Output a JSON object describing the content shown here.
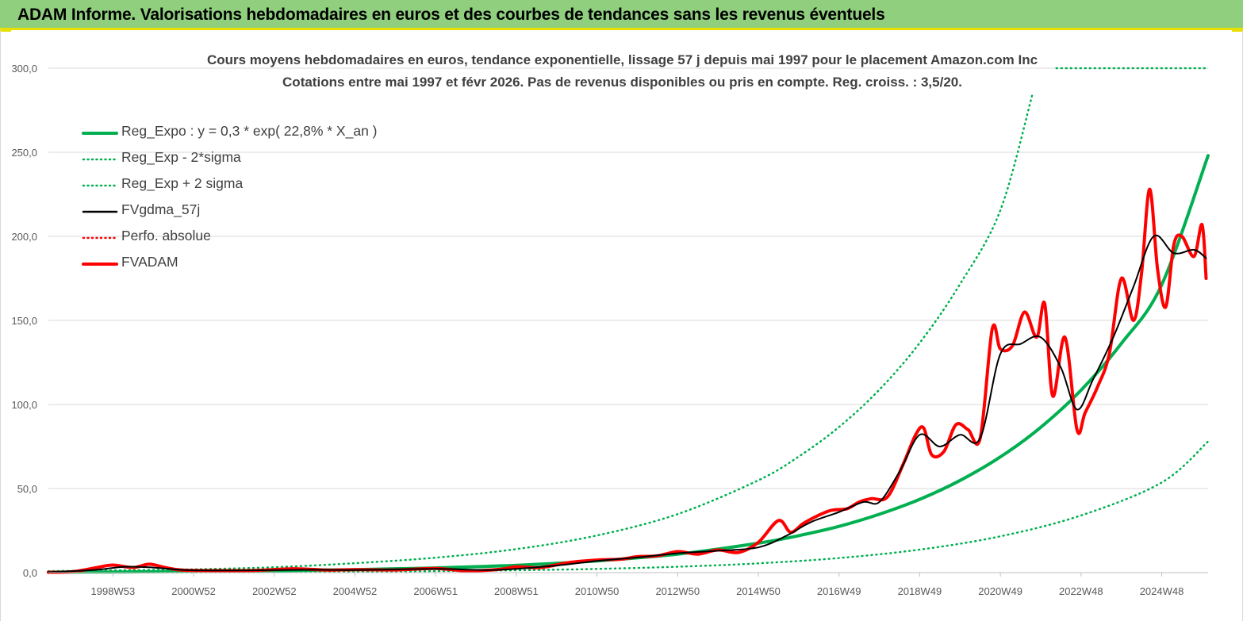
{
  "header": {
    "title": "ADAM Informe. Valorisations hebdomadaires en euros et des courbes de tendances sans les revenus éventuels"
  },
  "chart_data": {
    "type": "line",
    "title": "Cours moyens hebdomadaires en euros, tendance exponentielle, lissage 57 j depuis mai 1997 pour le placement Amazon.com Inc",
    "subtitle": "Cotations entre mai 1997 et févr 2026. Pas de revenus disponibles ou pris en compte. Reg. croiss. : 3,5/20.",
    "xlabel": "",
    "ylabel": "",
    "x_range": [
      1997.4,
      2026.15
    ],
    "ylim": [
      0,
      300
    ],
    "y_ticks": [
      "0,0",
      "50,0",
      "100,0",
      "150,0",
      "200,0",
      "250,0",
      "300,0"
    ],
    "x_ticks": [
      {
        "label": "1998W53",
        "x": 1999.0
      },
      {
        "label": "2000W52",
        "x": 2001.0
      },
      {
        "label": "2002W52",
        "x": 2003.0
      },
      {
        "label": "2004W52",
        "x": 2005.0
      },
      {
        "label": "2006W51",
        "x": 2007.0
      },
      {
        "label": "2008W51",
        "x": 2009.0
      },
      {
        "label": "2010W50",
        "x": 2011.0
      },
      {
        "label": "2012W50",
        "x": 2013.0
      },
      {
        "label": "2014W50",
        "x": 2015.0
      },
      {
        "label": "2016W49",
        "x": 2017.0
      },
      {
        "label": "2018W49",
        "x": 2019.0
      },
      {
        "label": "2020W49",
        "x": 2021.0
      },
      {
        "label": "2022W48",
        "x": 2023.0
      },
      {
        "label": "2024W48",
        "x": 2025.0
      }
    ],
    "grid": true,
    "legend_position": "top-left",
    "series": [
      {
        "name": "Reg_Expo : y = 0,3 * exp( 22,8% *  X_an )",
        "color": "#00b050",
        "style": "solid-thick",
        "x": [
          1997.4,
          1999,
          2001,
          2003,
          2005,
          2007,
          2009,
          2011,
          2013,
          2015,
          2016,
          2017,
          2018,
          2019,
          2020,
          2021,
          2022,
          2023,
          2024,
          2025,
          2026.15
        ],
        "y": [
          0.3,
          0.4,
          0.7,
          1.1,
          1.8,
          2.8,
          4.4,
          7.0,
          11.0,
          17.5,
          22.0,
          27.5,
          34.7,
          43.6,
          54.8,
          68.8,
          86.4,
          108.5,
          136.3,
          171.2,
          248.0
        ]
      },
      {
        "name": "Reg_Exp - 2*sigma",
        "color": "#00b050",
        "style": "dotted",
        "x": [
          1997.4,
          1999,
          2001,
          2003,
          2005,
          2007,
          2009,
          2011,
          2013,
          2015,
          2017,
          2019,
          2021,
          2023,
          2025,
          2026.15
        ],
        "y": [
          0.1,
          0.1,
          0.2,
          0.3,
          0.6,
          0.9,
          1.4,
          2.2,
          3.5,
          5.5,
          8.7,
          13.7,
          21.6,
          34.0,
          53.6,
          78.0
        ]
      },
      {
        "name": "Reg_Exp + 2 sigma",
        "color": "#00b050",
        "style": "dotted",
        "x": [
          1997.4,
          1999,
          2001,
          2003,
          2005,
          2007,
          2009,
          2011,
          2013,
          2015,
          2016,
          2017,
          2018,
          2019,
          2020,
          2021,
          2021.8
        ],
        "y": [
          0.9,
          1.3,
          2.0,
          3.2,
          5.6,
          8.9,
          14.0,
          22.1,
          34.8,
          54.9,
          69.0,
          86.6,
          108.8,
          136.6,
          171.6,
          215.5,
          285.0
        ]
      },
      {
        "name": "FVgdma_57j",
        "color": "#000000",
        "style": "solid",
        "x": [
          1997.4,
          1998.5,
          1999.3,
          2000.0,
          2000.8,
          2002,
          2004,
          2005,
          2007,
          2008.5,
          2010,
          2011,
          2012,
          2013,
          2014,
          2015,
          2015.7,
          2016.3,
          2017,
          2017.6,
          2018.0,
          2018.5,
          2019.0,
          2019.5,
          2020.0,
          2020.5,
          2021.0,
          2021.5,
          2022.0,
          2022.5,
          2022.9,
          2023.3,
          2023.8,
          2024.3,
          2024.8,
          2025.3,
          2025.8,
          2026.1
        ],
        "y": [
          0.3,
          1.5,
          3.5,
          3.0,
          1.5,
          1.3,
          1.7,
          1.5,
          2.2,
          1.6,
          4.2,
          7.0,
          9.0,
          11.5,
          13.0,
          15.0,
          22.0,
          30.0,
          36.0,
          42.0,
          42.0,
          60.0,
          82.0,
          75.0,
          82.0,
          80.0,
          130.0,
          136.0,
          140.0,
          122.0,
          97.0,
          115.0,
          140.0,
          170.0,
          200.0,
          190.0,
          192.0,
          187.0
        ]
      },
      {
        "name": "Perfo. absolue",
        "color": "#ff0000",
        "style": "dotted",
        "x": [],
        "y": []
      },
      {
        "name": "FVADAM",
        "color": "#ff0000",
        "style": "solid-thick",
        "x": [
          1997.4,
          1998.0,
          1998.6,
          1999.0,
          1999.5,
          1999.9,
          2000.3,
          2000.7,
          2001.5,
          2002.5,
          2003.5,
          2004.3,
          2005.0,
          2006.0,
          2007.0,
          2007.8,
          2008.6,
          2009.0,
          2009.6,
          2010.3,
          2011.0,
          2011.6,
          2012.0,
          2012.5,
          2013.0,
          2013.5,
          2014.0,
          2014.5,
          2015.0,
          2015.5,
          2015.8,
          2016.1,
          2016.4,
          2016.8,
          2017.2,
          2017.5,
          2017.8,
          2018.2,
          2018.6,
          2018.9,
          2019.1,
          2019.3,
          2019.6,
          2019.9,
          2020.2,
          2020.5,
          2020.8,
          2021.0,
          2021.3,
          2021.6,
          2021.9,
          2022.1,
          2022.3,
          2022.6,
          2022.9,
          2023.1,
          2023.4,
          2023.7,
          2024.0,
          2024.3,
          2024.5,
          2024.7,
          2024.9,
          2025.1,
          2025.3,
          2025.5,
          2025.8,
          2026.0,
          2026.1
        ],
        "y": [
          0.2,
          0.5,
          3.0,
          4.5,
          3.0,
          5.0,
          3.0,
          1.5,
          1.2,
          1.3,
          2.3,
          1.5,
          1.8,
          1.6,
          2.5,
          1.0,
          2.0,
          3.5,
          3.0,
          6.0,
          7.5,
          8.0,
          9.5,
          10.0,
          12.5,
          11.0,
          13.5,
          12.0,
          18.0,
          31.0,
          24.0,
          29.0,
          33.0,
          37.0,
          38.0,
          42.0,
          44.0,
          45.0,
          65.0,
          82.0,
          86.0,
          70.0,
          72.0,
          88.0,
          85.0,
          80.0,
          145.0,
          133.0,
          135.0,
          155.0,
          140.0,
          160.0,
          105.0,
          140.0,
          85.0,
          95.0,
          110.0,
          130.0,
          175.0,
          150.0,
          178.0,
          228.0,
          180.0,
          158.0,
          195.0,
          200.0,
          188.0,
          207.0,
          175.0
        ]
      }
    ]
  }
}
